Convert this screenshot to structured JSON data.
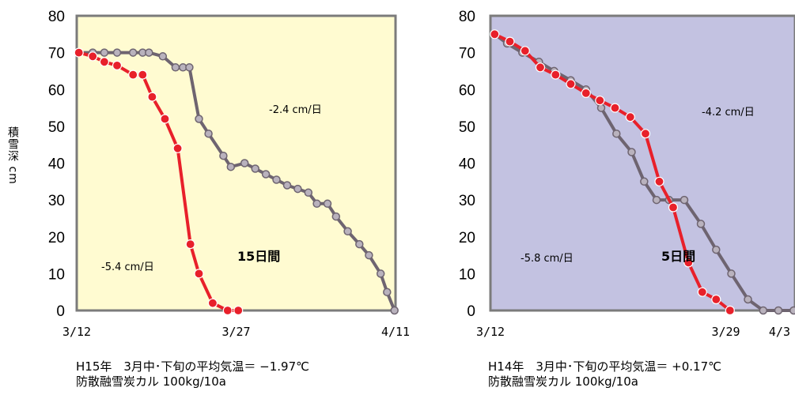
{
  "y_axis_label": "積雪深 cm",
  "colors": {
    "left_bg": "#fffbd1",
    "right_bg": "#c3c2e1",
    "frame": "#7b7b7b",
    "red_series": "#e8202a",
    "gray_series": "#6e6470"
  },
  "chart_data": [
    {
      "type": "line",
      "background": "#fffbd1",
      "ylim": [
        0,
        80
      ],
      "y_ticks": [
        "0",
        "10",
        "20",
        "30",
        "40",
        "50",
        "60",
        "70",
        "80"
      ],
      "x_ticks": [
        "3/12",
        "3/27",
        "4/11"
      ],
      "xlim_days": [
        0,
        30
      ],
      "annotations": {
        "gray_rate": "-2.4 cm/日",
        "red_rate": "-5.4 cm/日",
        "diff": "15日間"
      },
      "series": [
        {
          "color": "red",
          "x": [
            0.2,
            1.5,
            2.6,
            3.8,
            5.3,
            6.2,
            7.1,
            8.3,
            9.5,
            10.7,
            11.5,
            12.8,
            14.2,
            15.2
          ],
          "y": [
            70,
            69,
            67.5,
            66.5,
            64,
            64,
            58,
            52,
            44,
            18,
            10,
            2,
            0,
            0
          ]
        },
        {
          "color": "gray",
          "x": [
            0.2,
            1.5,
            2.6,
            3.8,
            5.3,
            6.2,
            6.8,
            8.1,
            9.3,
            10.0,
            10.6,
            11.5,
            12.4,
            13.8,
            14.5,
            15.8,
            16.8,
            17.8,
            18.8,
            19.8,
            20.8,
            21.8,
            22.6,
            23.6,
            24.4,
            25.5,
            26.6,
            27.5,
            28.6,
            29.2,
            29.9
          ],
          "y": [
            70,
            70,
            70,
            70,
            70,
            70,
            70,
            69,
            66,
            66,
            66,
            52,
            48,
            42,
            39,
            40,
            38.5,
            37,
            35.5,
            34,
            33,
            32,
            29,
            29,
            25.5,
            21.5,
            18,
            15,
            10,
            5,
            0
          ]
        }
      ]
    },
    {
      "type": "line",
      "background": "#c3c2e1",
      "ylim": [
        0,
        80
      ],
      "y_ticks": [
        "0",
        "10",
        "20",
        "30",
        "40",
        "50",
        "60",
        "70",
        "80"
      ],
      "x_ticks": [
        "3/12",
        "3/29",
        "4/3"
      ],
      "xlim_days": [
        0,
        22
      ],
      "x_tick_days": [
        0,
        17,
        22
      ],
      "annotations": {
        "gray_rate": "-4.2 cm/日",
        "red_rate": "-5.8 cm/日",
        "diff": "5日間"
      },
      "series": [
        {
          "color": "red",
          "x": [
            0.3,
            1.4,
            2.5,
            3.6,
            4.7,
            5.8,
            6.9,
            7.9,
            9.0,
            10.1,
            11.2,
            12.2,
            13.2,
            14.3,
            15.3,
            16.3,
            17.3
          ],
          "y": [
            75,
            73,
            70.5,
            66,
            64,
            61.5,
            59,
            57,
            55,
            52.5,
            48,
            35,
            28,
            13,
            5,
            3,
            0
          ]
        },
        {
          "color": "gray",
          "x": [
            0.3,
            1.2,
            2.3,
            3.5,
            4.6,
            5.8,
            6.9,
            8.0,
            9.1,
            10.2,
            11.1,
            12.0,
            12.9,
            14.0,
            15.2,
            16.3,
            17.4,
            18.6,
            19.7,
            20.8,
            21.9
          ],
          "y": [
            75,
            72.5,
            70,
            67.5,
            65,
            62.5,
            60,
            55,
            48,
            43,
            35,
            30,
            30,
            30,
            23.5,
            16.5,
            10,
            3,
            0,
            0,
            0
          ]
        }
      ]
    }
  ],
  "captions": [
    {
      "line1": "H15年　3月中･下旬の平均気温＝ −1.97℃",
      "line2": "防散融雪炭カル 100kg/10a"
    },
    {
      "line1": "H14年　3月中･下旬の平均気温＝ +0.17℃",
      "line2": "防散融雪炭カル 100kg/10a"
    }
  ]
}
